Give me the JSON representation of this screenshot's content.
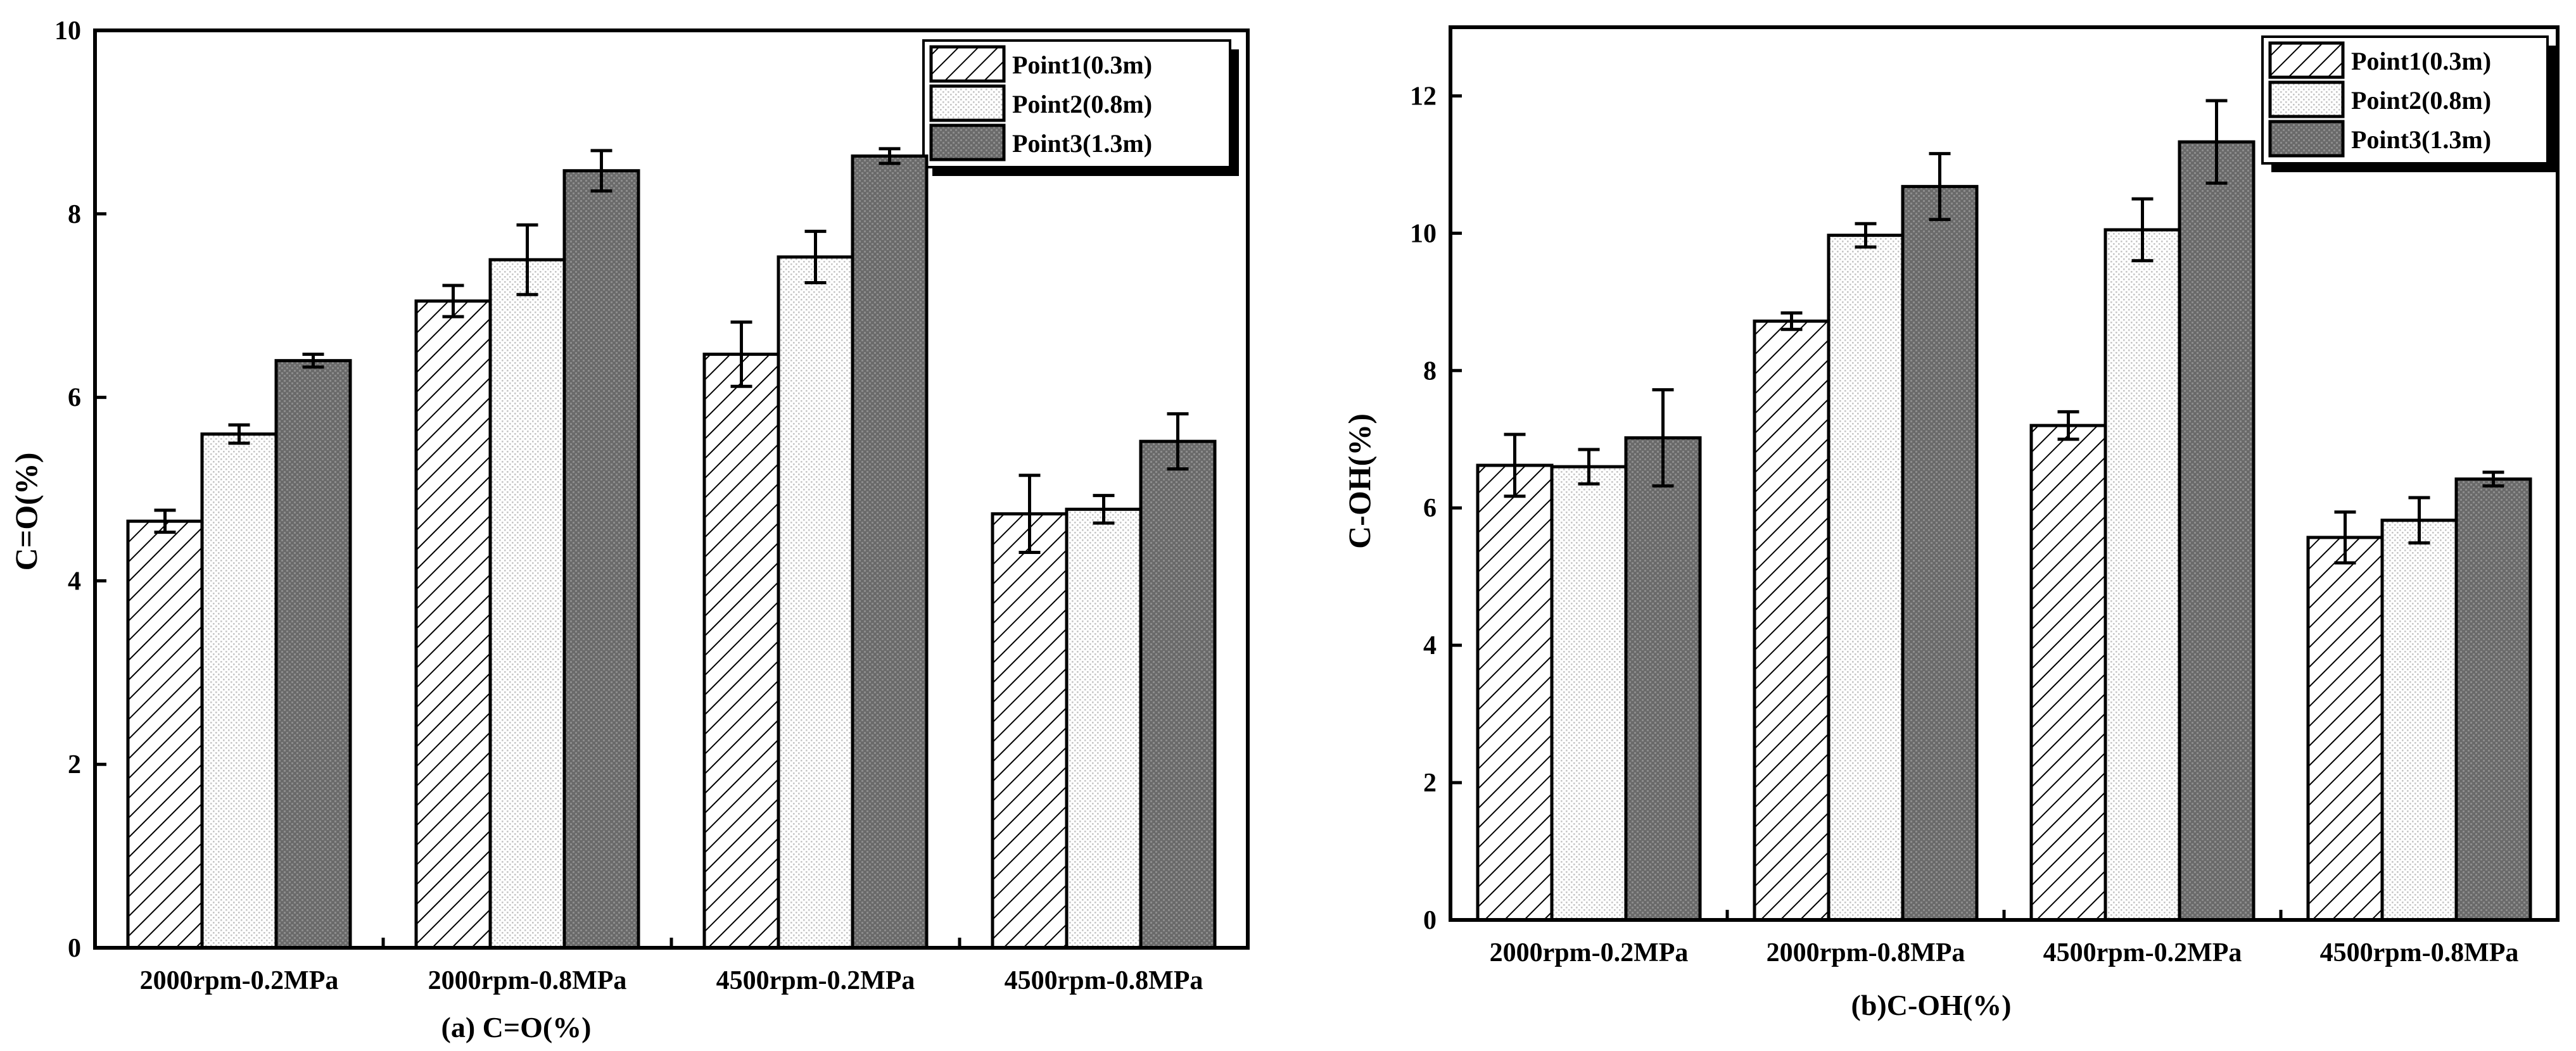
{
  "chart_data": [
    {
      "type": "bar",
      "caption": "(a) C=O(%)",
      "ylabel": "C=O(%)",
      "xlabel": "",
      "ylim": [
        0,
        10
      ],
      "yticks": [
        0,
        2,
        4,
        6,
        8,
        10
      ],
      "categories": [
        "2000rpm-0.2MPa",
        "2000rpm-0.8MPa",
        "4500rpm-0.2MPa",
        "4500rpm-0.8MPa"
      ],
      "legend_position": "top-right",
      "series": [
        {
          "name": "Point1(0.3m)",
          "style": "hatch",
          "values": [
            4.65,
            7.05,
            6.47,
            4.73
          ],
          "errors": [
            0.12,
            0.17,
            0.35,
            0.42
          ]
        },
        {
          "name": "Point2(0.8m)",
          "style": "dots",
          "values": [
            5.6,
            7.5,
            7.53,
            4.78
          ],
          "errors": [
            0.1,
            0.38,
            0.28,
            0.15
          ]
        },
        {
          "name": "Point3(1.3m)",
          "style": "dark",
          "values": [
            6.4,
            8.47,
            8.63,
            5.52
          ],
          "errors": [
            0.07,
            0.22,
            0.08,
            0.3
          ]
        }
      ]
    },
    {
      "type": "bar",
      "caption": "(b)C-OH(%)",
      "ylabel": "C-OH(%)",
      "xlabel": "",
      "ylim": [
        0,
        13
      ],
      "yticks": [
        0,
        2,
        4,
        6,
        8,
        10,
        12
      ],
      "categories": [
        "2000rpm-0.2MPa",
        "2000rpm-0.8MPa",
        "4500rpm-0.2MPa",
        "4500rpm-0.8MPa"
      ],
      "legend_position": "top-right",
      "series": [
        {
          "name": "Point1(0.3m)",
          "style": "hatch",
          "values": [
            6.62,
            8.72,
            7.2,
            5.57
          ],
          "errors": [
            0.45,
            0.12,
            0.2,
            0.37
          ]
        },
        {
          "name": "Point2(0.8m)",
          "style": "dots",
          "values": [
            6.6,
            9.97,
            10.05,
            5.82
          ],
          "errors": [
            0.25,
            0.17,
            0.45,
            0.33
          ]
        },
        {
          "name": "Point3(1.3m)",
          "style": "dark",
          "values": [
            7.02,
            10.68,
            11.33,
            6.42
          ],
          "errors": [
            0.7,
            0.48,
            0.6,
            0.1
          ]
        }
      ]
    }
  ]
}
